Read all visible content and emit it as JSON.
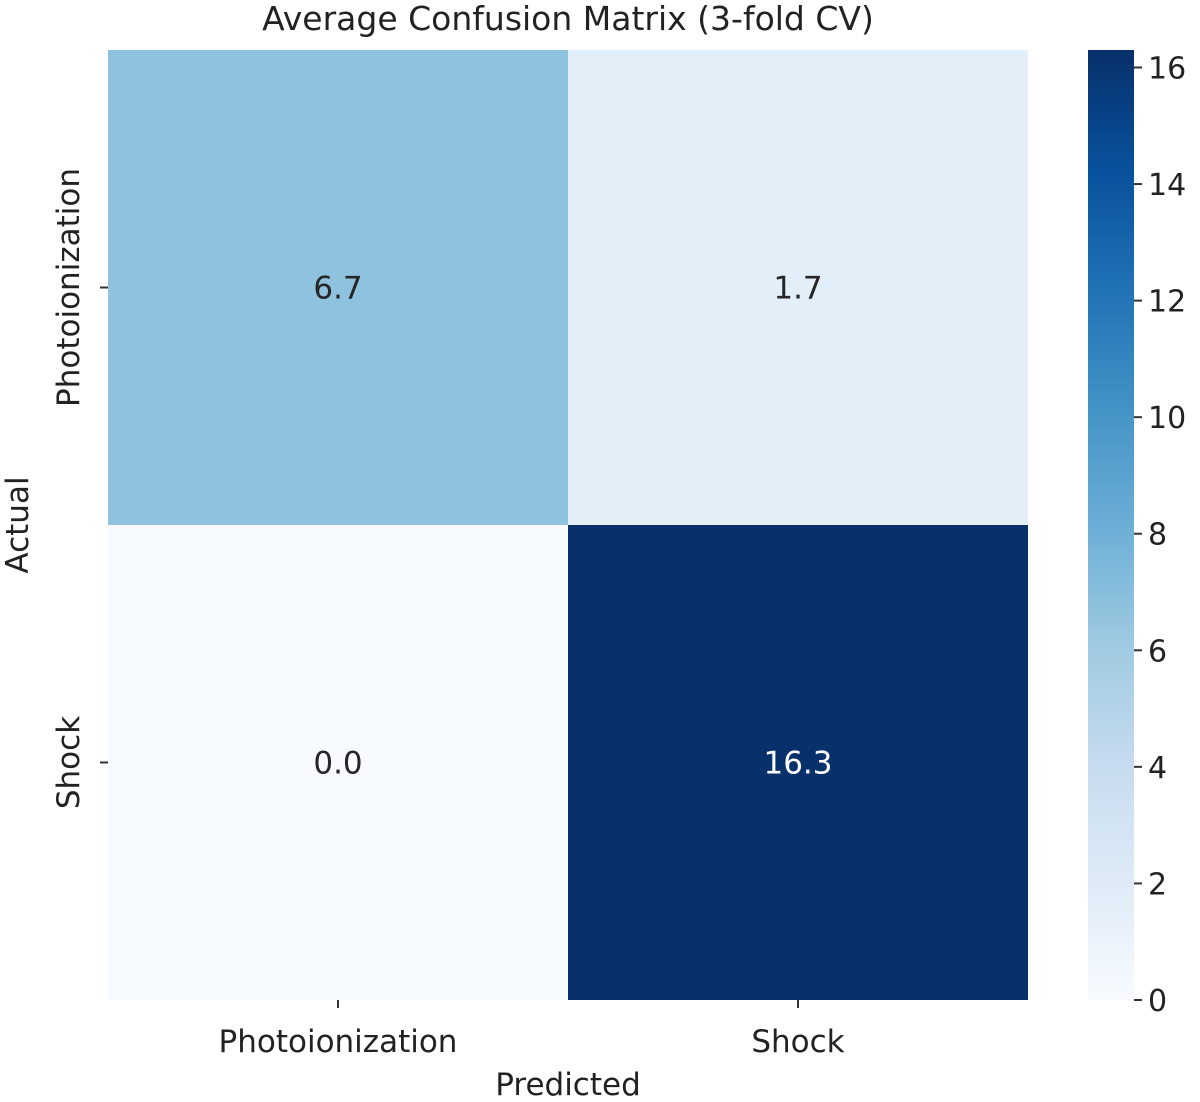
{
  "chart_data": {
    "type": "heatmap",
    "title": "Average Confusion Matrix (3-fold CV)",
    "xlabel": "Predicted",
    "ylabel": "Actual",
    "x_categories": [
      "Photoionization",
      "Shock"
    ],
    "y_categories": [
      "Photoionization",
      "Shock"
    ],
    "values": [
      [
        6.7,
        1.7
      ],
      [
        0.0,
        16.3
      ]
    ],
    "cell_labels": [
      [
        "6.7",
        "1.7"
      ],
      [
        "0.0",
        "16.3"
      ]
    ],
    "colormap": "Blues",
    "colorbar": {
      "vmin": 0,
      "vmax": 16.3,
      "ticks": [
        0,
        2,
        4,
        6,
        8,
        10,
        12,
        14,
        16
      ],
      "tick_labels": [
        "0",
        "2",
        "4",
        "6",
        "8",
        "10",
        "12",
        "14",
        "16"
      ]
    },
    "grid": false,
    "legend": "colorbar-right"
  }
}
